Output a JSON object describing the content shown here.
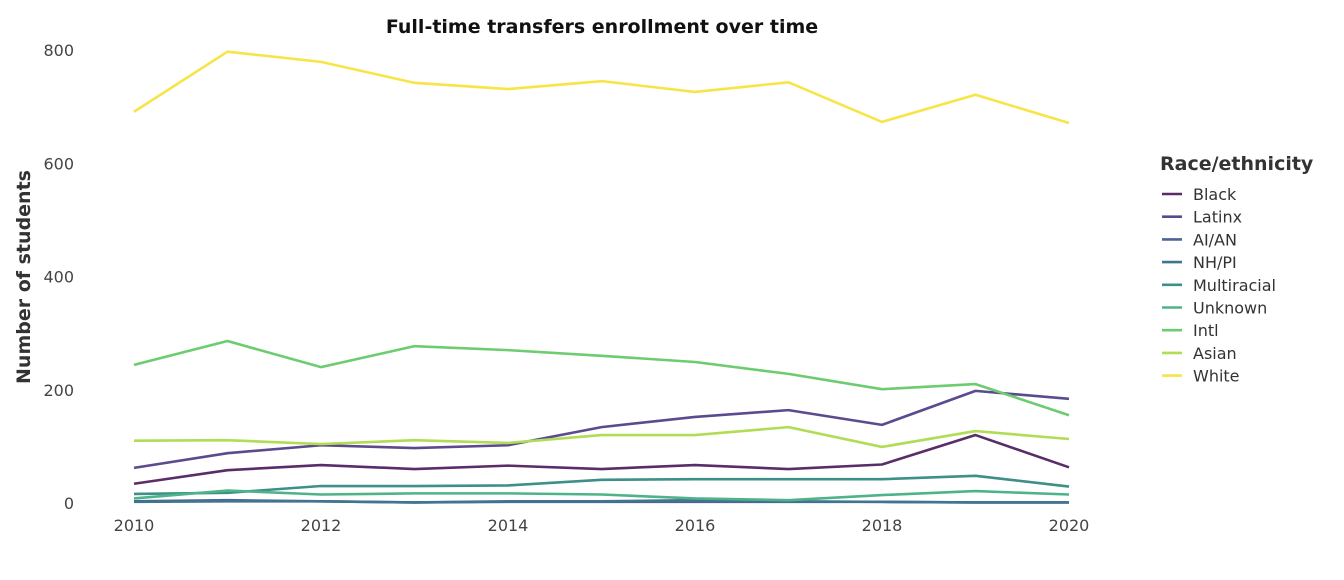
{
  "chart_data": {
    "type": "line",
    "title": "Full-time transfers enrollment over time",
    "xlabel": "",
    "ylabel": "Number of students",
    "xlim": [
      2010,
      2020
    ],
    "ylim": [
      0,
      800
    ],
    "x_ticks": [
      2010,
      2012,
      2014,
      2016,
      2018,
      2020
    ],
    "y_ticks": [
      0,
      200,
      400,
      600,
      800
    ],
    "grid": false,
    "legend_title": "Race/ethnicity",
    "legend_position": "right",
    "x": [
      2010,
      2011,
      2012,
      2013,
      2014,
      2015,
      2016,
      2017,
      2018,
      2019,
      2020
    ],
    "series": [
      {
        "name": "Black",
        "color": "#5a2d68",
        "values": [
          34,
          58,
          67,
          60,
          66,
          60,
          67,
          60,
          68,
          120,
          63
        ]
      },
      {
        "name": "Latinx",
        "color": "#5c4a8e",
        "values": [
          62,
          88,
          102,
          97,
          102,
          134,
          152,
          164,
          138,
          198,
          184
        ]
      },
      {
        "name": "AI/AN",
        "color": "#4f6394",
        "values": [
          3,
          5,
          3,
          1,
          2,
          2,
          2,
          2,
          2,
          1,
          1
        ]
      },
      {
        "name": "NH/PI",
        "color": "#3f7590",
        "values": [
          2,
          3,
          3,
          1,
          3,
          3,
          5,
          3,
          2,
          1,
          1
        ]
      },
      {
        "name": "Multiracial",
        "color": "#3c9088",
        "values": [
          16,
          18,
          30,
          30,
          31,
          41,
          42,
          42,
          42,
          48,
          29
        ]
      },
      {
        "name": "Unknown",
        "color": "#4fb38a",
        "values": [
          8,
          22,
          15,
          17,
          17,
          15,
          8,
          5,
          14,
          21,
          15
        ]
      },
      {
        "name": "Intl",
        "color": "#6dcb70",
        "values": [
          244,
          286,
          240,
          277,
          270,
          260,
          249,
          228,
          201,
          210,
          155
        ]
      },
      {
        "name": "Asian",
        "color": "#b1dc55",
        "values": [
          110,
          111,
          104,
          111,
          106,
          120,
          120,
          134,
          99,
          127,
          113
        ]
      },
      {
        "name": "White",
        "color": "#f7e547",
        "values": [
          691,
          797,
          779,
          742,
          731,
          745,
          726,
          743,
          673,
          721,
          671
        ]
      }
    ]
  }
}
